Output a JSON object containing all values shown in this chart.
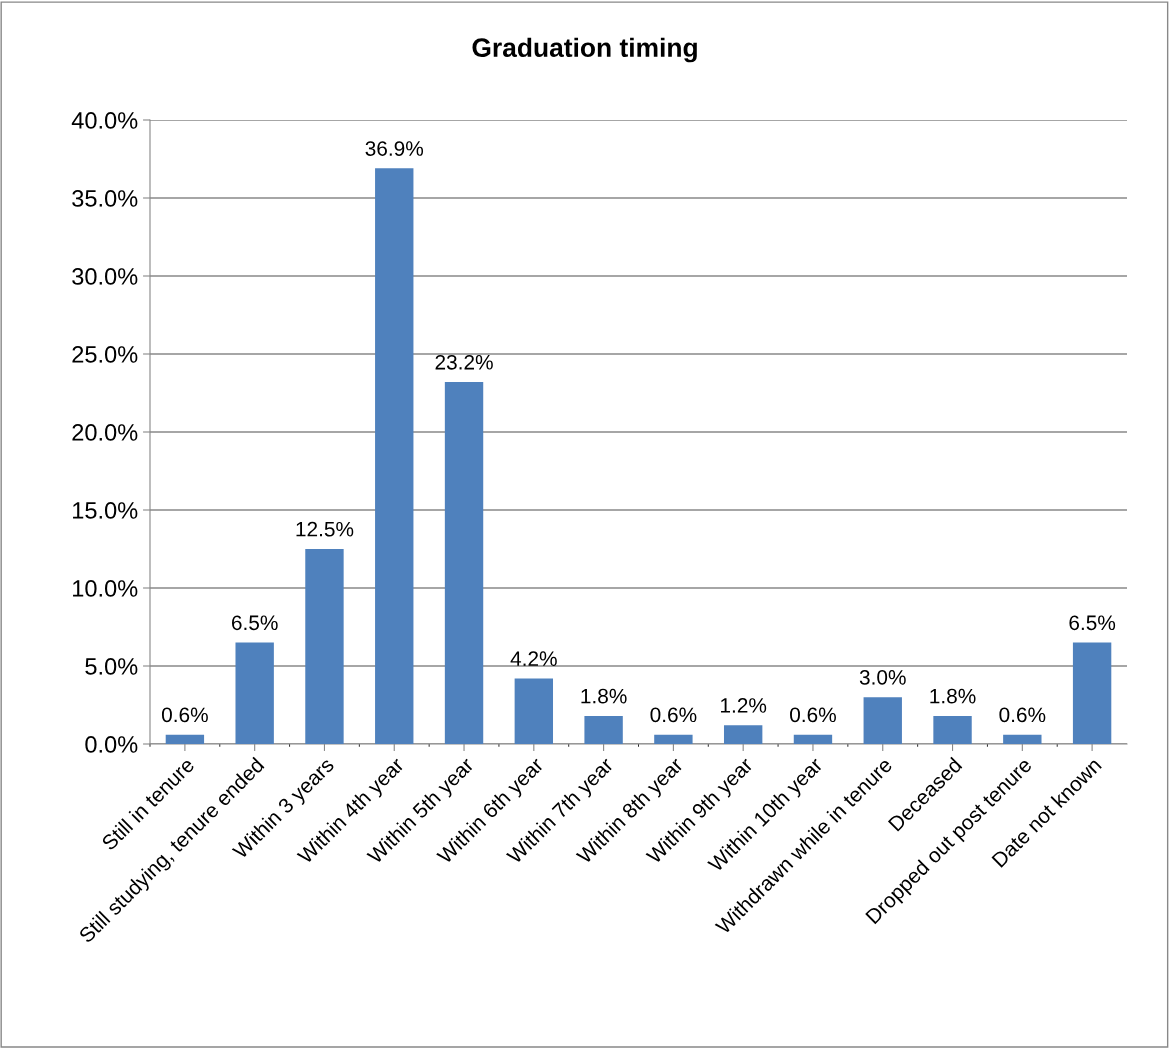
{
  "chart_data": {
    "type": "bar",
    "title": "Graduation timing",
    "categories": [
      "Still in tenure",
      "Still studying, tenure ended",
      "Within 3 years",
      "Within 4th year",
      "Within 5th year",
      "Within 6th year",
      "Within 7th year",
      "Within 8th year",
      "Within 9th year",
      "Within 10th year",
      "Withdrawn while in tenure",
      "Deceased",
      "Dropped out post tenure",
      "Date not known"
    ],
    "values": [
      0.6,
      6.5,
      12.5,
      36.9,
      23.2,
      4.2,
      1.8,
      0.6,
      1.2,
      0.6,
      3.0,
      1.8,
      0.6,
      6.5
    ],
    "value_labels": [
      "0.6%",
      "6.5%",
      "12.5%",
      "36.9%",
      "23.2%",
      "4.2%",
      "1.8%",
      "0.6%",
      "1.2%",
      "0.6%",
      "3.0%",
      "1.8%",
      "0.6%",
      "6.5%"
    ],
    "color": "#4f81bd",
    "ylim": [
      0,
      40
    ],
    "yticks": [
      {
        "value": 0,
        "label": "0.0%"
      },
      {
        "value": 5,
        "label": "5.0%"
      },
      {
        "value": 10,
        "label": "10.0%"
      },
      {
        "value": 15,
        "label": "15.0%"
      },
      {
        "value": 20,
        "label": "20.0%"
      },
      {
        "value": 25,
        "label": "25.0%"
      },
      {
        "value": 30,
        "label": "30.0%"
      },
      {
        "value": 35,
        "label": "35.0%"
      },
      {
        "value": 40,
        "label": "40.0%"
      }
    ],
    "grid": "y",
    "legend": false
  }
}
